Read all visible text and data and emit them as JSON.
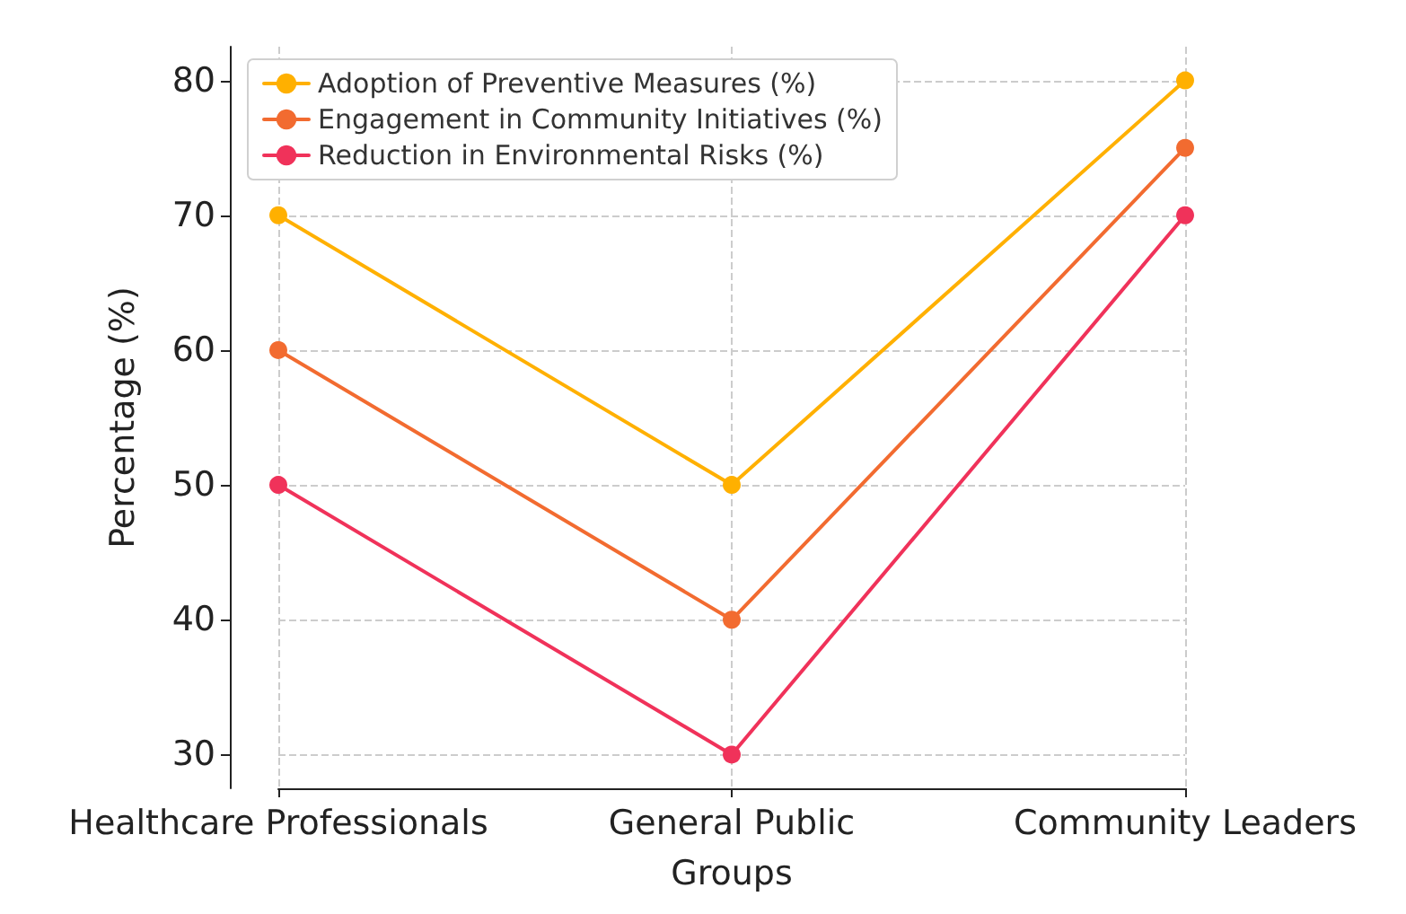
{
  "chart_data": {
    "type": "line",
    "xlabel": "Groups",
    "ylabel": "Percentage (%)",
    "categories": [
      "Healthcare Professionals",
      "General Public",
      "Community Leaders"
    ],
    "series": [
      {
        "name": "Adoption of Preventive Measures (%)",
        "color": "#ffb000",
        "values": [
          70,
          50,
          80
        ]
      },
      {
        "name": "Engagement in Community Initiatives (%)",
        "color": "#f26b30",
        "values": [
          60,
          40,
          75
        ]
      },
      {
        "name": "Reduction in Environmental Risks (%)",
        "color": "#f0325a",
        "values": [
          50,
          30,
          70
        ]
      }
    ],
    "ylim": [
      27.5,
      82.5
    ],
    "yticks": [
      30,
      40,
      50,
      60,
      70,
      80
    ],
    "grid": true,
    "legend": "top left",
    "marker": "circle",
    "line_style": "solid"
  }
}
